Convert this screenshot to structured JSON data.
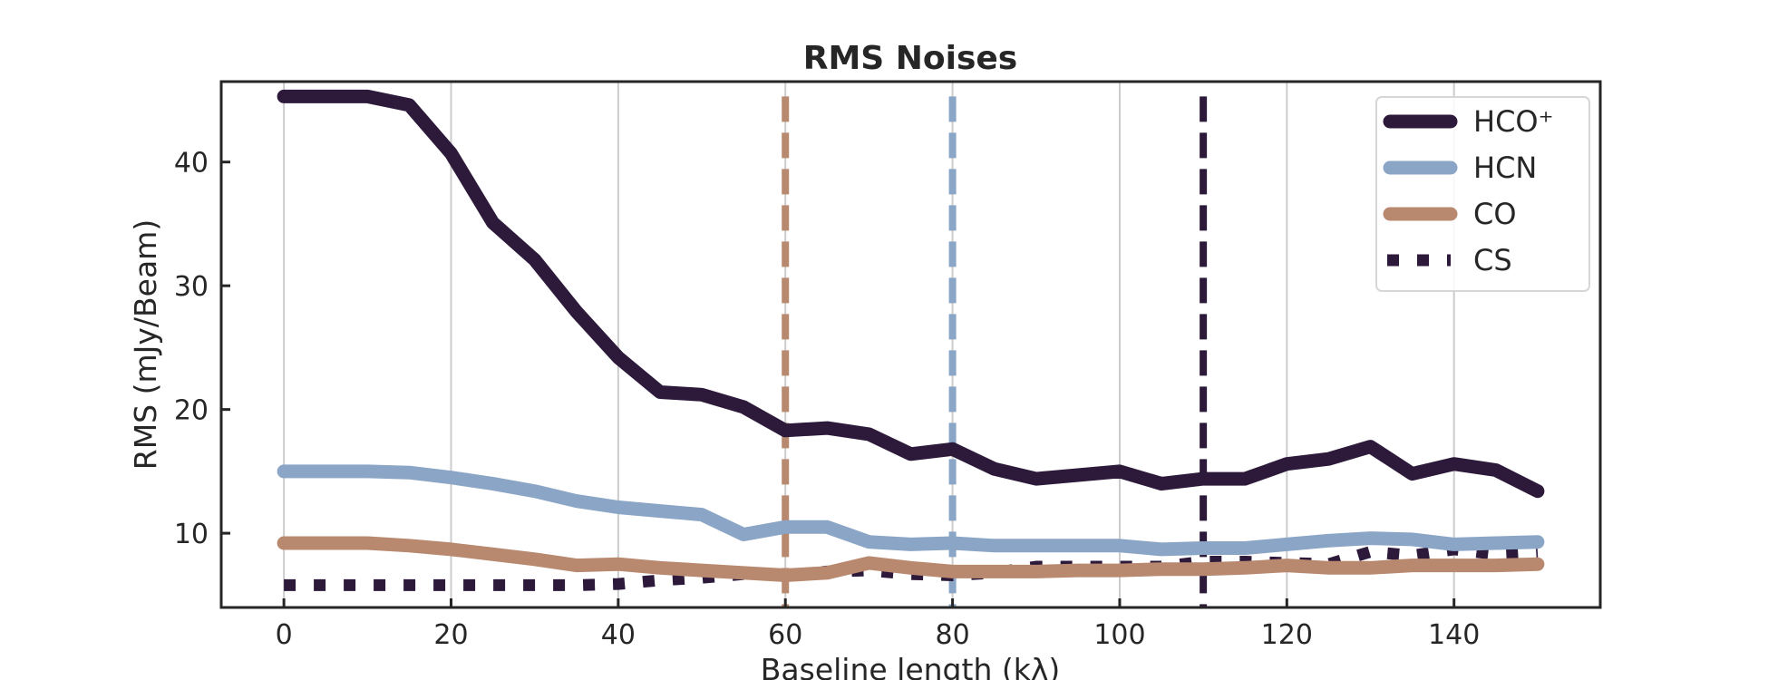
{
  "chart_data": {
    "type": "line",
    "title": "RMS Noises",
    "xlabel": "Baseline length (kλ)",
    "ylabel": "RMS (mJy/Beam)",
    "xlim": [
      -7.5,
      157.5
    ],
    "ylim": [
      4,
      46.5
    ],
    "xticks": [
      0,
      20,
      40,
      60,
      80,
      100,
      120,
      140
    ],
    "yticks": [
      10,
      20,
      30,
      40
    ],
    "grid": "vertical",
    "legend_position": "top-right",
    "x": [
      0,
      5,
      10,
      15,
      20,
      25,
      30,
      35,
      40,
      45,
      50,
      55,
      60,
      65,
      70,
      75,
      80,
      85,
      90,
      95,
      100,
      105,
      110,
      115,
      120,
      125,
      130,
      135,
      140,
      145,
      150
    ],
    "series": [
      {
        "name": "HCO⁺",
        "color": "#2d1a3b",
        "style": "solid",
        "values": [
          45.3,
          45.3,
          45.3,
          44.6,
          40.7,
          35.1,
          32.1,
          27.9,
          24.2,
          21.4,
          21.2,
          20.2,
          18.3,
          18.5,
          18.0,
          16.4,
          16.8,
          15.2,
          14.4,
          14.7,
          15.0,
          14.0,
          14.4,
          14.4,
          15.6,
          16.0,
          17.0,
          14.8,
          15.6,
          15.1,
          13.4
        ]
      },
      {
        "name": "HCN",
        "color": "#8aa5c6",
        "style": "solid",
        "values": [
          15.0,
          15.0,
          15.0,
          14.9,
          14.5,
          14.0,
          13.4,
          12.6,
          12.1,
          11.8,
          11.5,
          9.9,
          10.5,
          10.5,
          9.3,
          9.1,
          9.2,
          9.0,
          9.0,
          9.0,
          9.0,
          8.7,
          8.8,
          8.8,
          9.1,
          9.4,
          9.6,
          9.5,
          9.1,
          9.2,
          9.3
        ]
      },
      {
        "name": "CO",
        "color": "#b8886f",
        "style": "solid",
        "values": [
          9.2,
          9.2,
          9.2,
          9.0,
          8.7,
          8.3,
          7.9,
          7.4,
          7.5,
          7.2,
          7.0,
          6.8,
          6.6,
          6.8,
          7.6,
          7.2,
          6.9,
          6.9,
          6.9,
          7.0,
          7.0,
          7.1,
          7.1,
          7.2,
          7.4,
          7.2,
          7.2,
          7.4,
          7.4,
          7.4,
          7.5
        ]
      },
      {
        "name": "CS",
        "color": "#2d1a3b",
        "style": "dotted",
        "values": [
          5.8,
          5.8,
          5.8,
          5.8,
          5.8,
          5.8,
          5.8,
          5.8,
          5.9,
          6.2,
          6.4,
          6.7,
          6.6,
          6.9,
          7.0,
          6.7,
          6.6,
          6.8,
          7.3,
          7.3,
          7.3,
          7.3,
          7.7,
          7.7,
          7.6,
          7.5,
          8.5,
          8.2,
          8.7,
          8.3,
          8.5
        ]
      }
    ],
    "vlines": [
      {
        "x": 60,
        "color": "#b8886f",
        "style": "dashed"
      },
      {
        "x": 80,
        "color": "#8aa5c6",
        "style": "dashed"
      },
      {
        "x": 110,
        "color": "#2d1a3b",
        "style": "dashed"
      }
    ]
  }
}
